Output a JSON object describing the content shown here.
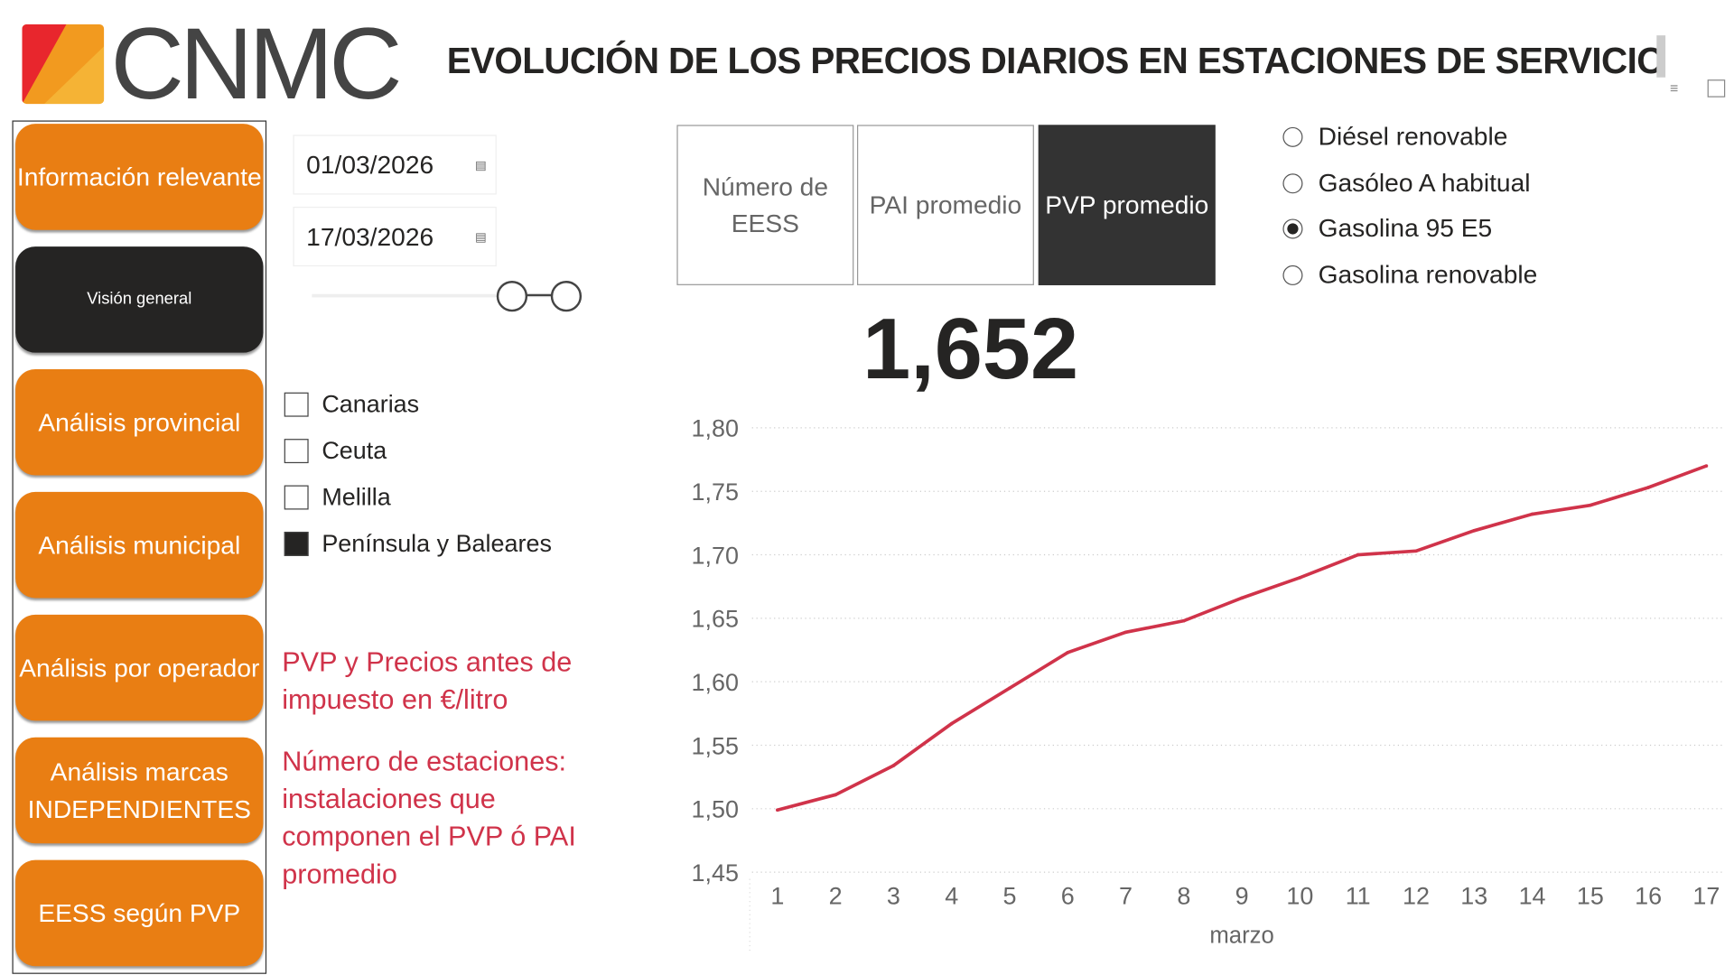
{
  "header": {
    "logo_text": "CNMC",
    "title": "EVOLUCIÓN DE LOS PRECIOS DIARIOS EN ESTACIONES DE SERVICIO"
  },
  "nav": [
    {
      "label": "Información relevante",
      "active": false
    },
    {
      "label": "Visión general",
      "active": true
    },
    {
      "label": "Análisis provincial",
      "active": false
    },
    {
      "label": "Análisis municipal",
      "active": false
    },
    {
      "label": "Análisis por operador",
      "active": false
    },
    {
      "label": "Análisis marcas INDEPENDIENTES",
      "active": false
    },
    {
      "label": "EESS según PVP",
      "active": false
    }
  ],
  "dates": {
    "start": "01/03/2026",
    "end": "17/03/2026"
  },
  "regions": [
    {
      "label": "Canarias",
      "checked": false
    },
    {
      "label": "Ceuta",
      "checked": false
    },
    {
      "label": "Melilla",
      "checked": false
    },
    {
      "label": "Península y Baleares",
      "checked": true
    }
  ],
  "notes": [
    "PVP y Precios antes de impuesto en €/litro",
    "Número de estaciones: instalaciones que componen el PVP ó PAI promedio"
  ],
  "tabs": [
    {
      "label": "Número de EESS",
      "active": false
    },
    {
      "label": "PAI promedio",
      "active": false
    },
    {
      "label": "PVP promedio",
      "active": true
    }
  ],
  "fuels": [
    {
      "label": "Diésel renovable",
      "selected": false
    },
    {
      "label": "Gasóleo A habitual",
      "selected": false
    },
    {
      "label": "Gasolina 95 E5",
      "selected": true
    },
    {
      "label": "Gasolina renovable",
      "selected": false
    }
  ],
  "kpi": "1,652",
  "colors": {
    "nav": "#e97e13",
    "nav_active": "#252423",
    "line": "#d0334a",
    "note": "#d0334a"
  },
  "chart_data": {
    "type": "line",
    "xlabel": "marzo",
    "ylabel": "",
    "x": [
      1,
      2,
      3,
      4,
      5,
      6,
      7,
      8,
      9,
      10,
      11,
      12,
      13,
      14,
      15,
      16,
      17
    ],
    "values": [
      1.499,
      1.511,
      1.534,
      1.567,
      1.595,
      1.623,
      1.639,
      1.648,
      1.666,
      1.682,
      1.7,
      1.703,
      1.719,
      1.732,
      1.739,
      1.753,
      1.77
    ],
    "ylim": [
      1.45,
      1.8
    ],
    "yticks": [
      "1,45",
      "1,50",
      "1,55",
      "1,60",
      "1,65",
      "1,70",
      "1,75",
      "1,80"
    ],
    "grid": true
  }
}
